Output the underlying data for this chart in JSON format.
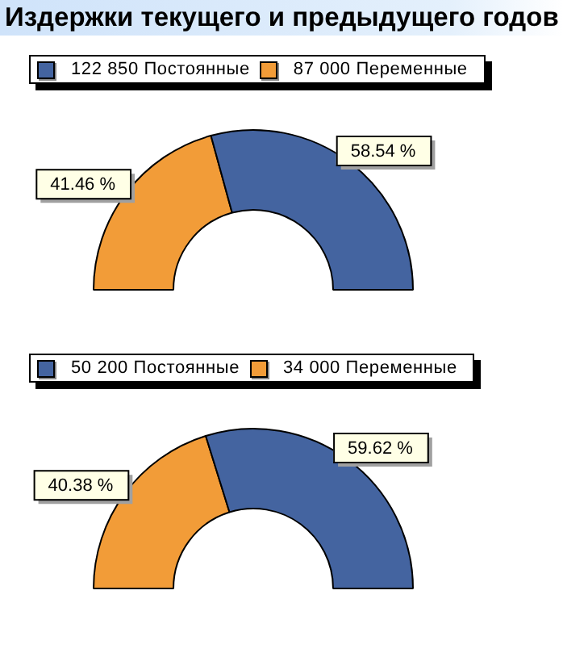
{
  "chart_data": [
    {
      "type": "donut",
      "title": "Издержки текущего и предыдущего годов",
      "categories": [
        "122 850 Постоянные",
        "87 000 Переменные"
      ],
      "values": [
        58.54,
        41.46
      ],
      "colors": [
        "#4464a0",
        "#f29c38"
      ],
      "value_labels": [
        "58.54 %",
        "41.46 %"
      ],
      "legend": "top left"
    },
    {
      "type": "donut",
      "categories": [
        "50 200 Постоянные",
        "34 000 Переменные"
      ],
      "values": [
        59.62,
        40.38
      ],
      "colors": [
        "#4464a0",
        "#f29c38"
      ],
      "value_labels": [
        "59.62 %",
        "40.38 %"
      ],
      "legend": "top left"
    }
  ]
}
